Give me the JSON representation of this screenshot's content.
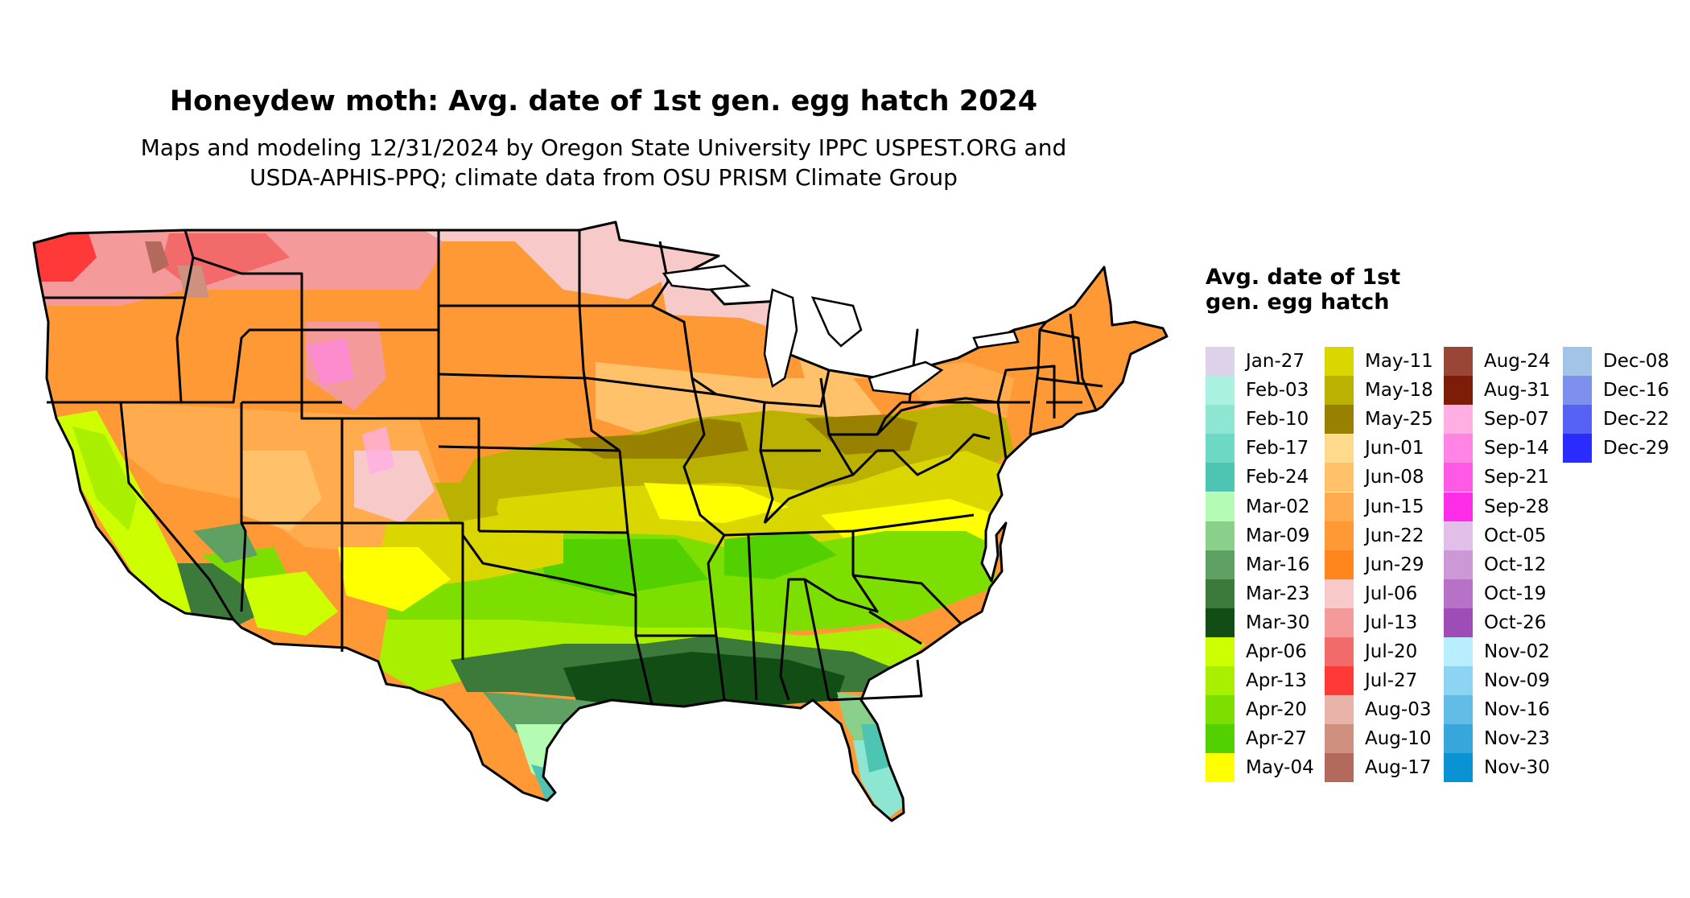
{
  "map": {
    "title": "Honeydew moth: Avg. date of 1st gen. egg hatch 2024",
    "subtitle_line1": "Maps and modeling 12/31/2024 by Oregon State University IPPC USPEST.ORG and",
    "subtitle_line2": "USDA-APHIS-PPQ; climate data from OSU PRISM Climate Group",
    "legend_title": "Avg. date of 1st gen. egg hatch",
    "legend": [
      {
        "label": "Jan-27",
        "color": "#dcd3ea"
      },
      {
        "label": "Feb-03",
        "color": "#a8f2df"
      },
      {
        "label": "Feb-10",
        "color": "#8de6d1"
      },
      {
        "label": "Feb-17",
        "color": "#6dd8c3"
      },
      {
        "label": "Feb-24",
        "color": "#4ec4b3"
      },
      {
        "label": "Mar-02",
        "color": "#b4fbb4"
      },
      {
        "label": "Mar-09",
        "color": "#8ad08a"
      },
      {
        "label": "Mar-16",
        "color": "#5fa063"
      },
      {
        "label": "Mar-23",
        "color": "#3c7a3c"
      },
      {
        "label": "Mar-30",
        "color": "#114d14"
      },
      {
        "label": "Apr-06",
        "color": "#cdff00"
      },
      {
        "label": "Apr-13",
        "color": "#a8ef00"
      },
      {
        "label": "Apr-20",
        "color": "#7ddf00"
      },
      {
        "label": "Apr-27",
        "color": "#52d000"
      },
      {
        "label": "May-04",
        "color": "#ffff00"
      },
      {
        "label": "May-11",
        "color": "#dad600"
      },
      {
        "label": "May-18",
        "color": "#bbb100"
      },
      {
        "label": "May-25",
        "color": "#998100"
      },
      {
        "label": "Jun-01",
        "color": "#ffd98c"
      },
      {
        "label": "Jun-08",
        "color": "#ffc16a"
      },
      {
        "label": "Jun-15",
        "color": "#ffab4e"
      },
      {
        "label": "Jun-22",
        "color": "#ff9936"
      },
      {
        "label": "Jun-29",
        "color": "#ff861c"
      },
      {
        "label": "Jul-06",
        "color": "#f7c9c9"
      },
      {
        "label": "Jul-13",
        "color": "#f59a9a"
      },
      {
        "label": "Jul-20",
        "color": "#f36a6a"
      },
      {
        "label": "Jul-27",
        "color": "#ff3838"
      },
      {
        "label": "Aug-03",
        "color": "#e8b3a8"
      },
      {
        "label": "Aug-10",
        "color": "#cf9080"
      },
      {
        "label": "Aug-17",
        "color": "#b36a5c"
      },
      {
        "label": "Aug-24",
        "color": "#9a4636"
      },
      {
        "label": "Aug-31",
        "color": "#7d1d08"
      },
      {
        "label": "Sep-07",
        "color": "#ffafe3"
      },
      {
        "label": "Sep-14",
        "color": "#ff84e4"
      },
      {
        "label": "Sep-21",
        "color": "#ff5ae6"
      },
      {
        "label": "Sep-28",
        "color": "#ff2de8"
      },
      {
        "label": "Oct-05",
        "color": "#e2bfe8"
      },
      {
        "label": "Oct-12",
        "color": "#cc98d6"
      },
      {
        "label": "Oct-19",
        "color": "#b672c6"
      },
      {
        "label": "Oct-26",
        "color": "#9e4cb6"
      },
      {
        "label": "Nov-02",
        "color": "#b8eeff"
      },
      {
        "label": "Nov-09",
        "color": "#8dd4f2"
      },
      {
        "label": "Nov-16",
        "color": "#62bde6"
      },
      {
        "label": "Nov-23",
        "color": "#37a6da"
      },
      {
        "label": "Nov-30",
        "color": "#0a93d2"
      },
      {
        "label": "Dec-08",
        "color": "#a2c4e6"
      },
      {
        "label": "Dec-16",
        "color": "#7d90ee"
      },
      {
        "label": "Dec-22",
        "color": "#5562f4"
      },
      {
        "label": "Dec-29",
        "color": "#2a2cff"
      }
    ]
  }
}
